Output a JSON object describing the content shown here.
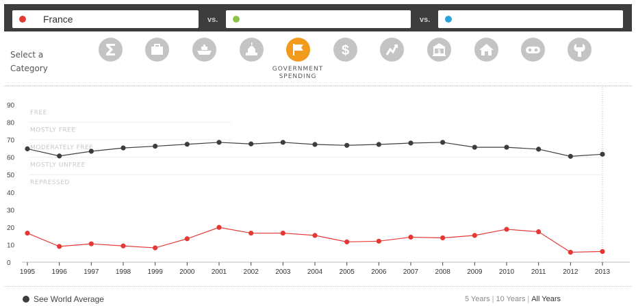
{
  "selectors": [
    {
      "name": "France",
      "color": "#e53935"
    },
    {
      "name": "",
      "color": "#8bc34a"
    },
    {
      "name": "",
      "color": "#29a3db"
    }
  ],
  "vs_label": "vs.",
  "category_prompt": "Select a Category",
  "categories": [
    {
      "icon": "sigma-icon",
      "active": false
    },
    {
      "icon": "briefcase-icon",
      "active": false
    },
    {
      "icon": "ship-icon",
      "active": false
    },
    {
      "icon": "capitol-icon",
      "active": false
    },
    {
      "icon": "flag-icon",
      "active": true
    },
    {
      "icon": "dollar-icon",
      "active": false
    },
    {
      "icon": "trend-arrow-icon",
      "active": false
    },
    {
      "icon": "bank-icon",
      "active": false
    },
    {
      "icon": "house-icon",
      "active": false
    },
    {
      "icon": "mask-icon",
      "active": false
    },
    {
      "icon": "wrench-icon",
      "active": false
    }
  ],
  "active_category_line1": "GOVERNMENT",
  "active_category_line2": "SPENDING",
  "chart_data": {
    "type": "line",
    "x": [
      1995,
      1996,
      1997,
      1998,
      1999,
      2000,
      2001,
      2002,
      2003,
      2004,
      2005,
      2006,
      2007,
      2008,
      2009,
      2010,
      2011,
      2012,
      2013
    ],
    "series": [
      {
        "color": "#3d3d3d",
        "values": [
          64.8,
          60.7,
          63.4,
          65.3,
          66.3,
          67.4,
          68.5,
          67.6,
          68.5,
          67.3,
          66.8,
          67.3,
          68.1,
          68.5,
          65.7,
          65.7,
          64.6,
          60.5,
          61.7
        ]
      },
      {
        "color": "#e53935",
        "values": [
          16.6,
          9.0,
          10.5,
          9.3,
          8.2,
          13.4,
          19.9,
          16.6,
          16.6,
          15.3,
          11.6,
          12.0,
          14.3,
          13.9,
          15.3,
          18.8,
          17.4,
          5.7,
          6.1
        ]
      }
    ],
    "ylim": [
      0,
      90
    ],
    "yticks": [
      0,
      10,
      20,
      30,
      40,
      50,
      60,
      70,
      80,
      90
    ],
    "bands": [
      "FREE",
      "MOSTLY FREE",
      "MODERATELY FREE",
      "MOSTLY UNFREE",
      "REPRESSED"
    ],
    "grid": false
  },
  "footer": {
    "world_average": "See World Average",
    "ranges": [
      "5 Years",
      "10 Years",
      "All Years"
    ],
    "selected_range": "All Years"
  }
}
